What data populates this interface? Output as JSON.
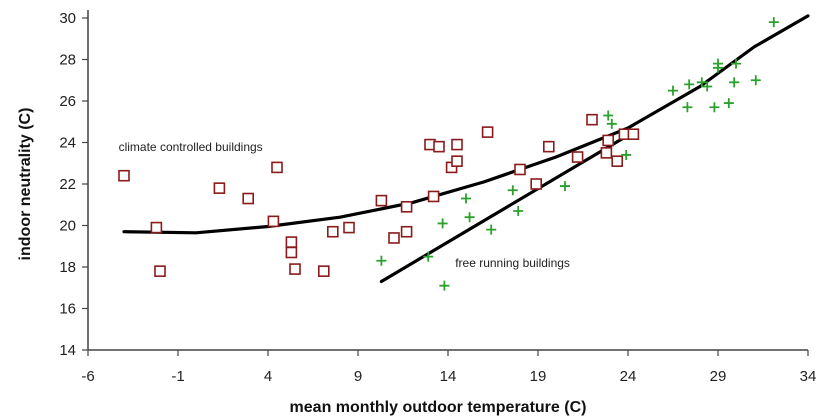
{
  "chart_data": {
    "type": "scatter",
    "title": "",
    "xlabel": "mean monthly outdoor temperature (C)",
    "ylabel": "indoor neutrality (C)",
    "xlim": [
      -6,
      34
    ],
    "ylim": [
      14,
      30
    ],
    "xticks": [
      -6,
      -1,
      4,
      9,
      14,
      19,
      24,
      29,
      34
    ],
    "yticks": [
      14,
      16,
      18,
      20,
      22,
      24,
      26,
      28,
      30
    ],
    "grid": false,
    "colors": {
      "climate_controlled": "#8b1a1a",
      "free_running": "#2ca02c",
      "fit_lines": "#000000",
      "axes": "#444444"
    },
    "series": [
      {
        "marker": "square",
        "points": [
          [
            -4.0,
            22.4
          ],
          [
            -2.2,
            19.9
          ],
          [
            -2.0,
            17.8
          ],
          [
            1.3,
            21.8
          ],
          [
            2.9,
            21.3
          ],
          [
            4.3,
            20.2
          ],
          [
            4.5,
            22.8
          ],
          [
            5.3,
            19.2
          ],
          [
            5.3,
            18.7
          ],
          [
            5.5,
            17.9
          ],
          [
            7.1,
            17.8
          ],
          [
            7.6,
            19.7
          ],
          [
            8.5,
            19.9
          ],
          [
            10.3,
            21.2
          ],
          [
            11.0,
            19.4
          ],
          [
            11.7,
            19.7
          ],
          [
            11.7,
            20.9
          ],
          [
            13.0,
            23.9
          ],
          [
            13.2,
            21.4
          ],
          [
            13.5,
            23.8
          ],
          [
            14.2,
            22.8
          ],
          [
            14.5,
            23.1
          ],
          [
            14.5,
            23.9
          ],
          [
            16.2,
            24.5
          ],
          [
            18.0,
            22.7
          ],
          [
            18.9,
            22.0
          ],
          [
            19.6,
            23.8
          ],
          [
            21.2,
            23.3
          ],
          [
            22.0,
            25.1
          ],
          [
            22.8,
            23.5
          ],
          [
            22.9,
            24.1
          ],
          [
            23.4,
            23.1
          ],
          [
            23.8,
            24.4
          ],
          [
            24.3,
            24.4
          ]
        ]
      },
      {
        "marker": "plus",
        "points": [
          [
            10.3,
            18.3
          ],
          [
            12.9,
            18.5
          ],
          [
            13.7,
            20.1
          ],
          [
            13.8,
            17.1
          ],
          [
            15.0,
            21.3
          ],
          [
            15.2,
            20.4
          ],
          [
            16.4,
            19.8
          ],
          [
            17.6,
            21.7
          ],
          [
            17.9,
            20.7
          ],
          [
            20.5,
            21.9
          ],
          [
            22.9,
            25.3
          ],
          [
            23.1,
            24.9
          ],
          [
            23.9,
            23.4
          ],
          [
            26.5,
            26.5
          ],
          [
            27.3,
            25.7
          ],
          [
            27.4,
            26.8
          ],
          [
            28.1,
            26.9
          ],
          [
            28.4,
            26.7
          ],
          [
            28.8,
            25.7
          ],
          [
            29.0,
            27.6
          ],
          [
            29.0,
            27.8
          ],
          [
            29.6,
            25.9
          ],
          [
            29.9,
            26.9
          ],
          [
            30.0,
            27.8
          ],
          [
            31.1,
            27.0
          ],
          [
            32.1,
            29.8
          ]
        ]
      }
    ],
    "fit_lines": [
      {
        "name": "climate controlled fit",
        "points": [
          [
            -4.0,
            19.7
          ],
          [
            0.0,
            19.65
          ],
          [
            4.0,
            19.95
          ],
          [
            8.0,
            20.4
          ],
          [
            12.0,
            21.1
          ],
          [
            16.0,
            22.1
          ],
          [
            20.0,
            23.3
          ],
          [
            24.0,
            24.7
          ],
          [
            28.0,
            26.7
          ],
          [
            31.0,
            28.6
          ],
          [
            34.0,
            30.1
          ]
        ]
      },
      {
        "name": "free running fit",
        "points": [
          [
            10.3,
            17.3
          ],
          [
            24.3,
            24.5
          ]
        ]
      }
    ],
    "annotations": [
      {
        "text": "climate controlled buildings",
        "x": -4.3,
        "y": 23.6
      },
      {
        "text": "free running buildings",
        "x": 14.4,
        "y": 18.0
      }
    ]
  }
}
